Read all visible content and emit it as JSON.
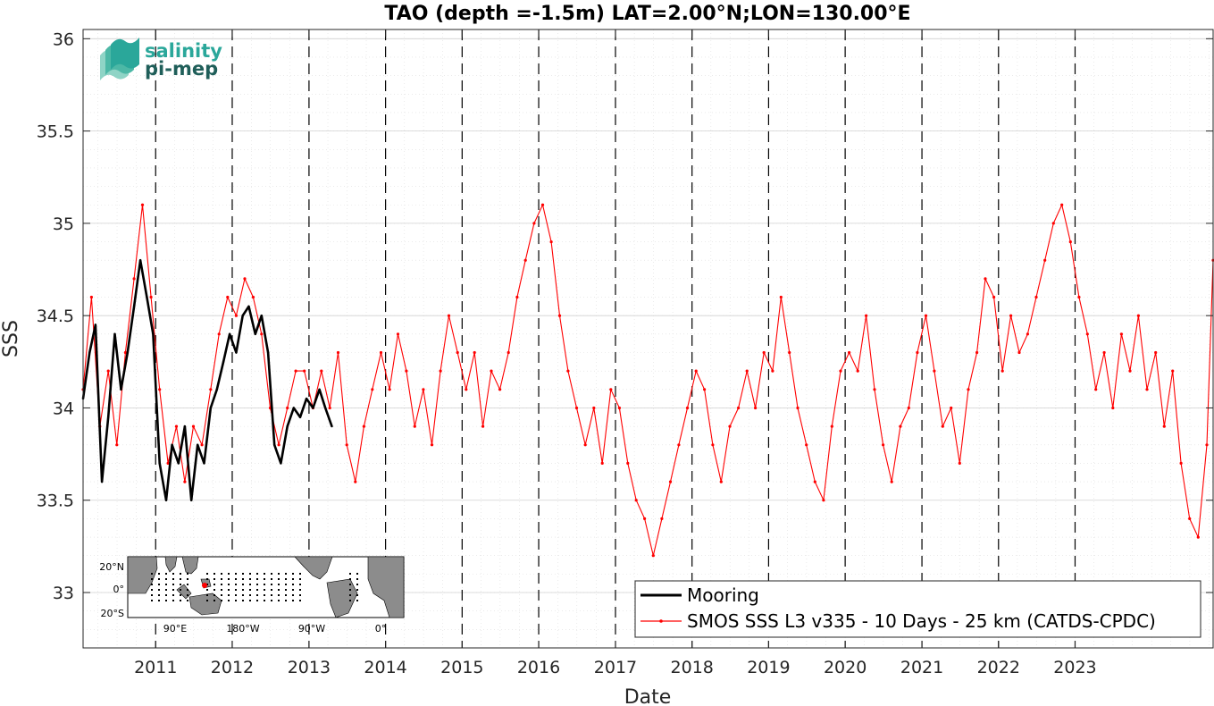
{
  "chart_data": {
    "type": "line",
    "title": "TAO (depth =-1.5m) LAT=2.00°N;LON=130.00°E",
    "xlabel": "Date",
    "ylabel": "SSS",
    "xlim": [
      "2010-01-20",
      "2024-10-20"
    ],
    "ylim": [
      32.7,
      36.05
    ],
    "x_tick_labels": [
      "2011",
      "2012",
      "2013",
      "2014",
      "2015",
      "2016",
      "2017",
      "2018",
      "2019",
      "2020",
      "2021",
      "2022",
      "2023"
    ],
    "x_ticks": [
      "2011-01-01",
      "2012-01-01",
      "2013-01-01",
      "2014-01-01",
      "2015-01-01",
      "2016-01-01",
      "2017-01-01",
      "2018-01-01",
      "2019-01-01",
      "2020-01-01",
      "2021-01-01",
      "2022-01-01",
      "2023-01-01"
    ],
    "y_ticks": [
      33,
      33.5,
      34,
      34.5,
      35,
      35.5,
      36
    ],
    "y_tick_labels": [
      "33",
      "33.5",
      "34",
      "34.5",
      "35",
      "35.5",
      "36"
    ],
    "grid": true,
    "minor_grid": true,
    "vertical_dashed_lines": "yearly",
    "legend_position": "bottom-right",
    "series": [
      {
        "name": "Mooring",
        "color": "#000000",
        "style": "solid",
        "points": [
          [
            "2010-01-20",
            34.05
          ],
          [
            "2010-02-20",
            34.3
          ],
          [
            "2010-03-20",
            34.45
          ],
          [
            "2010-04-20",
            33.6
          ],
          [
            "2010-05-20",
            33.95
          ],
          [
            "2010-06-20",
            34.4
          ],
          [
            "2010-07-20",
            34.1
          ],
          [
            "2010-08-20",
            34.3
          ],
          [
            "2010-09-20",
            34.55
          ],
          [
            "2010-10-20",
            34.8
          ],
          [
            "2010-11-20",
            34.6
          ],
          [
            "2010-12-20",
            34.4
          ],
          [
            "2011-01-20",
            33.7
          ],
          [
            "2011-02-20",
            33.5
          ],
          [
            "2011-03-20",
            33.8
          ],
          [
            "2011-04-20",
            33.7
          ],
          [
            "2011-05-20",
            33.9
          ],
          [
            "2011-06-20",
            33.5
          ],
          [
            "2011-07-20",
            33.8
          ],
          [
            "2011-08-20",
            33.7
          ],
          [
            "2011-09-20",
            34.0
          ],
          [
            "2011-10-20",
            34.1
          ],
          [
            "2011-11-20",
            34.25
          ],
          [
            "2011-12-20",
            34.4
          ],
          [
            "2012-01-20",
            34.3
          ],
          [
            "2012-02-20",
            34.5
          ],
          [
            "2012-03-20",
            34.55
          ],
          [
            "2012-04-20",
            34.4
          ],
          [
            "2012-05-20",
            34.5
          ],
          [
            "2012-06-20",
            34.3
          ],
          [
            "2012-07-20",
            33.8
          ],
          [
            "2012-08-20",
            33.7
          ],
          [
            "2012-09-20",
            33.9
          ],
          [
            "2012-10-20",
            34.0
          ],
          [
            "2012-11-20",
            33.95
          ],
          [
            "2012-12-20",
            34.05
          ],
          [
            "2013-01-20",
            34.0
          ],
          [
            "2013-02-20",
            34.1
          ],
          [
            "2013-03-20",
            34.0
          ],
          [
            "2013-04-20",
            33.9
          ]
        ]
      },
      {
        "name": "SMOS SSS L3 v335 - 10 Days - 25 km (CATDS-CPDC)",
        "color": "#ff0000",
        "style": "solid-with-dots",
        "points": [
          [
            "2010-01-20",
            34.1
          ],
          [
            "2010-03-01",
            34.6
          ],
          [
            "2010-04-10",
            33.9
          ],
          [
            "2010-05-20",
            34.2
          ],
          [
            "2010-06-30",
            33.8
          ],
          [
            "2010-08-10",
            34.3
          ],
          [
            "2010-09-20",
            34.7
          ],
          [
            "2010-10-30",
            35.1
          ],
          [
            "2010-12-10",
            34.6
          ],
          [
            "2011-01-20",
            34.1
          ],
          [
            "2011-03-01",
            33.7
          ],
          [
            "2011-04-10",
            33.9
          ],
          [
            "2011-05-20",
            33.6
          ],
          [
            "2011-06-30",
            33.9
          ],
          [
            "2011-08-10",
            33.8
          ],
          [
            "2011-09-20",
            34.1
          ],
          [
            "2011-10-30",
            34.4
          ],
          [
            "2011-12-10",
            34.6
          ],
          [
            "2012-01-20",
            34.5
          ],
          [
            "2012-03-01",
            34.7
          ],
          [
            "2012-04-10",
            34.6
          ],
          [
            "2012-05-20",
            34.4
          ],
          [
            "2012-06-30",
            34.0
          ],
          [
            "2012-08-10",
            33.8
          ],
          [
            "2012-09-20",
            34.0
          ],
          [
            "2012-10-30",
            34.2
          ],
          [
            "2012-12-10",
            34.2
          ],
          [
            "2013-01-20",
            34.0
          ],
          [
            "2013-03-01",
            34.2
          ],
          [
            "2013-04-10",
            34.0
          ],
          [
            "2013-05-20",
            34.3
          ],
          [
            "2013-06-30",
            33.8
          ],
          [
            "2013-08-10",
            33.6
          ],
          [
            "2013-09-20",
            33.9
          ],
          [
            "2013-10-30",
            34.1
          ],
          [
            "2013-12-10",
            34.3
          ],
          [
            "2014-01-20",
            34.1
          ],
          [
            "2014-03-01",
            34.4
          ],
          [
            "2014-04-10",
            34.2
          ],
          [
            "2014-05-20",
            33.9
          ],
          [
            "2014-06-30",
            34.1
          ],
          [
            "2014-08-10",
            33.8
          ],
          [
            "2014-09-20",
            34.2
          ],
          [
            "2014-10-30",
            34.5
          ],
          [
            "2014-12-10",
            34.3
          ],
          [
            "2015-01-20",
            34.1
          ],
          [
            "2015-03-01",
            34.3
          ],
          [
            "2015-04-10",
            33.9
          ],
          [
            "2015-05-20",
            34.2
          ],
          [
            "2015-06-30",
            34.1
          ],
          [
            "2015-08-10",
            34.3
          ],
          [
            "2015-09-20",
            34.6
          ],
          [
            "2015-10-30",
            34.8
          ],
          [
            "2015-12-10",
            35.0
          ],
          [
            "2016-01-20",
            35.1
          ],
          [
            "2016-03-01",
            34.9
          ],
          [
            "2016-04-10",
            34.5
          ],
          [
            "2016-05-20",
            34.2
          ],
          [
            "2016-06-30",
            34.0
          ],
          [
            "2016-08-10",
            33.8
          ],
          [
            "2016-09-20",
            34.0
          ],
          [
            "2016-10-30",
            33.7
          ],
          [
            "2016-12-10",
            34.1
          ],
          [
            "2017-01-20",
            34.0
          ],
          [
            "2017-03-01",
            33.7
          ],
          [
            "2017-04-10",
            33.5
          ],
          [
            "2017-05-20",
            33.4
          ],
          [
            "2017-06-30",
            33.2
          ],
          [
            "2017-08-10",
            33.4
          ],
          [
            "2017-09-20",
            33.6
          ],
          [
            "2017-10-30",
            33.8
          ],
          [
            "2017-12-10",
            34.0
          ],
          [
            "2018-01-20",
            34.2
          ],
          [
            "2018-03-01",
            34.1
          ],
          [
            "2018-04-10",
            33.8
          ],
          [
            "2018-05-20",
            33.6
          ],
          [
            "2018-06-30",
            33.9
          ],
          [
            "2018-08-10",
            34.0
          ],
          [
            "2018-09-20",
            34.2
          ],
          [
            "2018-10-30",
            34.0
          ],
          [
            "2018-12-10",
            34.3
          ],
          [
            "2019-01-20",
            34.2
          ],
          [
            "2019-03-01",
            34.6
          ],
          [
            "2019-04-10",
            34.3
          ],
          [
            "2019-05-20",
            34.0
          ],
          [
            "2019-06-30",
            33.8
          ],
          [
            "2019-08-10",
            33.6
          ],
          [
            "2019-09-20",
            33.5
          ],
          [
            "2019-10-30",
            33.9
          ],
          [
            "2019-12-10",
            34.2
          ],
          [
            "2020-01-20",
            34.3
          ],
          [
            "2020-03-01",
            34.2
          ],
          [
            "2020-04-10",
            34.5
          ],
          [
            "2020-05-20",
            34.1
          ],
          [
            "2020-06-30",
            33.8
          ],
          [
            "2020-08-10",
            33.6
          ],
          [
            "2020-09-20",
            33.9
          ],
          [
            "2020-10-30",
            34.0
          ],
          [
            "2020-12-10",
            34.3
          ],
          [
            "2021-01-20",
            34.5
          ],
          [
            "2021-03-01",
            34.2
          ],
          [
            "2021-04-10",
            33.9
          ],
          [
            "2021-05-20",
            34.0
          ],
          [
            "2021-06-30",
            33.7
          ],
          [
            "2021-08-10",
            34.1
          ],
          [
            "2021-09-20",
            34.3
          ],
          [
            "2021-10-30",
            34.7
          ],
          [
            "2021-12-10",
            34.6
          ],
          [
            "2022-01-20",
            34.2
          ],
          [
            "2022-03-01",
            34.5
          ],
          [
            "2022-04-10",
            34.3
          ],
          [
            "2022-05-20",
            34.4
          ],
          [
            "2022-06-30",
            34.6
          ],
          [
            "2022-08-10",
            34.8
          ],
          [
            "2022-09-20",
            35.0
          ],
          [
            "2022-10-30",
            35.1
          ],
          [
            "2022-12-10",
            34.9
          ],
          [
            "2023-01-20",
            34.6
          ],
          [
            "2023-03-01",
            34.4
          ],
          [
            "2023-04-10",
            34.1
          ],
          [
            "2023-05-20",
            34.3
          ],
          [
            "2023-06-30",
            34.0
          ],
          [
            "2023-08-10",
            34.4
          ],
          [
            "2023-09-20",
            34.2
          ],
          [
            "2023-10-30",
            34.5
          ],
          [
            "2023-12-10",
            34.1
          ],
          [
            "2024-01-20",
            34.3
          ],
          [
            "2024-03-01",
            33.9
          ],
          [
            "2024-04-10",
            34.2
          ],
          [
            "2024-05-20",
            33.7
          ],
          [
            "2024-06-30",
            33.4
          ],
          [
            "2024-08-10",
            33.3
          ],
          [
            "2024-09-20",
            33.8
          ],
          [
            "2024-10-20",
            34.8
          ]
        ]
      }
    ],
    "inset_map": {
      "lat_tick_labels": [
        "20°N",
        "0°",
        "20°S"
      ],
      "lon_tick_labels": [
        "90°E",
        "180°W",
        "90°W",
        "0°"
      ],
      "marker_color": "#ff0000"
    }
  },
  "logo": {
    "line1": "salinity",
    "line2": "pi-mep"
  },
  "colors": {
    "axis": "#262626",
    "grid": "#dedede",
    "logo_teal": "#2aa79a",
    "logo_dark": "#1f5e59",
    "map_land": "#8c8c8c",
    "map_ocean": "#ffffff"
  }
}
